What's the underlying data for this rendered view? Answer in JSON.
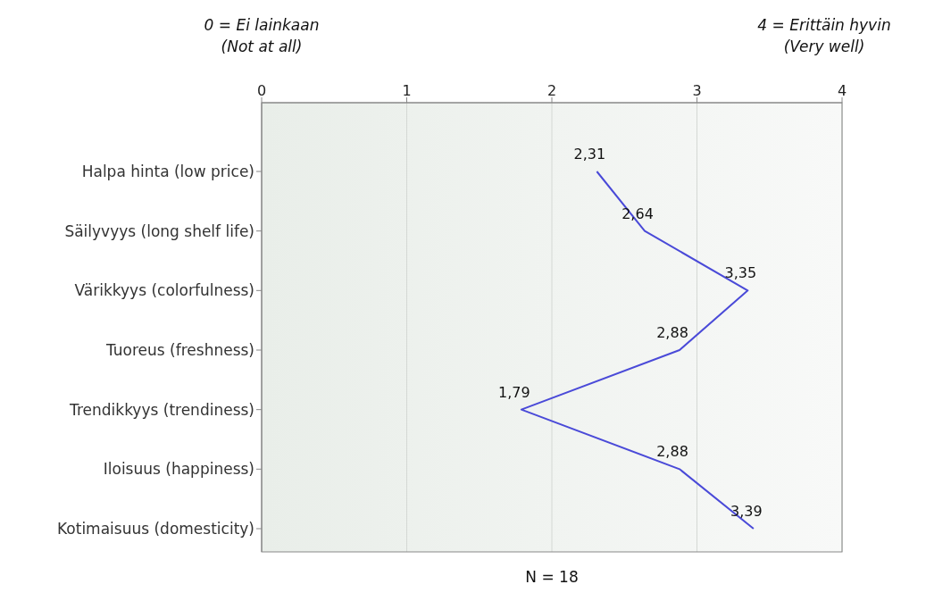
{
  "chart_data": {
    "type": "line",
    "orientation": "horizontal",
    "categories": [
      "Halpa hinta (low price)",
      "Säilyvyys (long shelf life)",
      "Värikkyys (colorfulness)",
      "Tuoreus (freshness)",
      "Trendikkyys (trendiness)",
      "Iloisuus (happiness)",
      "Kotimaisuus (domesticity)"
    ],
    "series": [
      {
        "color": "#4a4ad8",
        "values": [
          2.31,
          2.64,
          3.35,
          2.88,
          1.79,
          2.88,
          3.39
        ],
        "value_labels": [
          "2,31",
          "2,64",
          "3,35",
          "2,88",
          "1,79",
          "2,88",
          "3,39"
        ]
      }
    ],
    "xlim": [
      0,
      4
    ],
    "xticks": [
      0,
      1,
      2,
      3,
      4
    ],
    "grid": "x",
    "legend": false,
    "marker": "none",
    "line_style": "solid",
    "annotations": [
      "0 = Ei lainkaan\n(Not at all)",
      "4 = Erittäin hyvin\n(Very well)",
      "N = 18"
    ]
  }
}
